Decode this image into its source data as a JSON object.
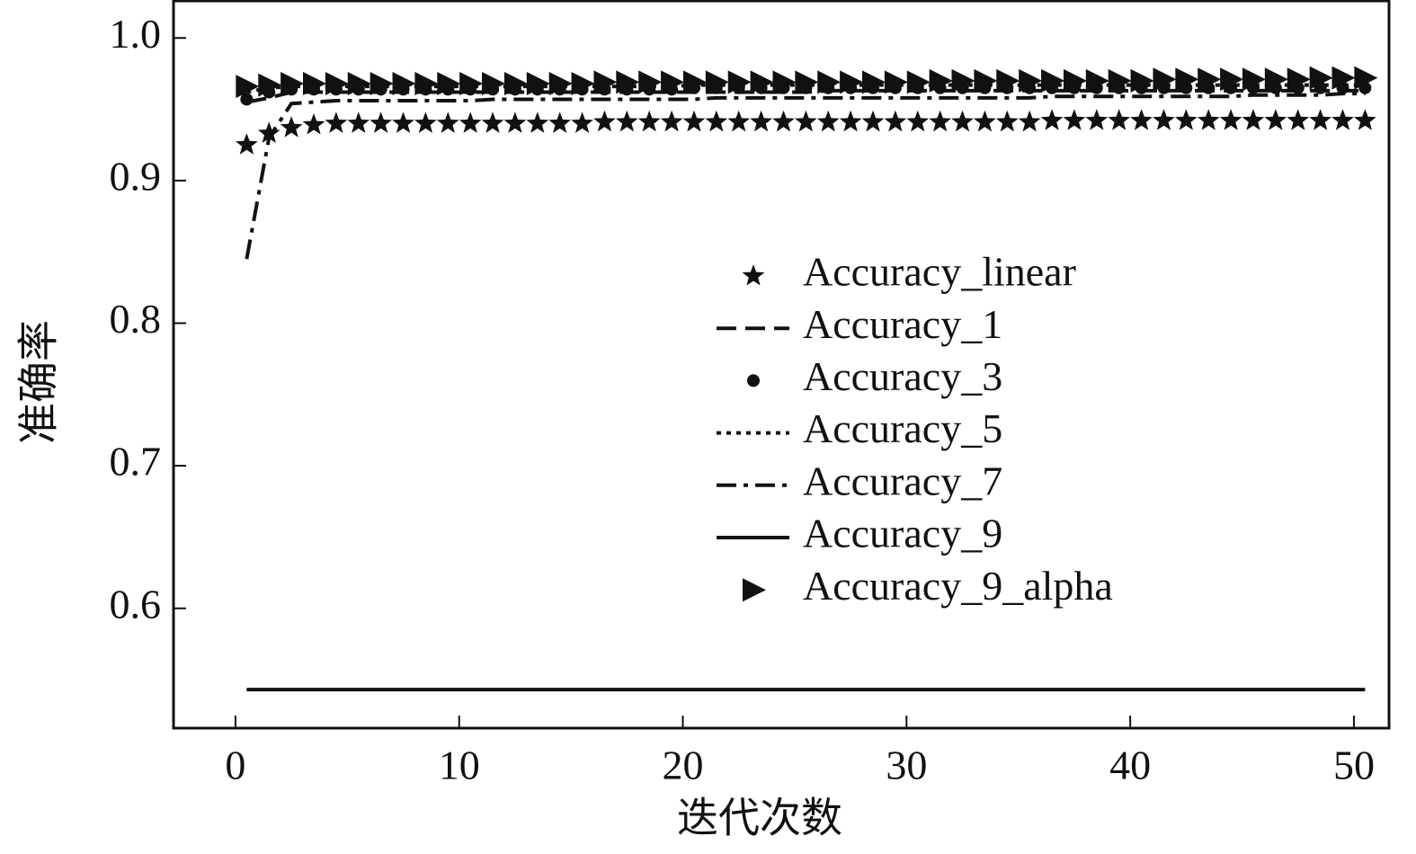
{
  "chart_data": {
    "type": "line",
    "xlabel": "迭代次数",
    "ylabel": "准确率",
    "xlim": [
      -2.77,
      51.57
    ],
    "ylim": [
      0.516,
      1.026
    ],
    "xticks": [
      0,
      10,
      20,
      30,
      40,
      50
    ],
    "yticks": [
      0.6,
      0.7,
      0.8,
      0.9,
      {
        "value": 1,
        "label": "1.0"
      }
    ],
    "x": [
      0.5,
      1.5,
      2.5,
      3.5,
      4.5,
      5.5,
      6.5,
      7.5,
      8.5,
      9.5,
      10.5,
      11.5,
      12.5,
      13.5,
      14.5,
      15.5,
      16.5,
      17.5,
      18.5,
      19.5,
      20.5,
      21.5,
      22.5,
      23.5,
      24.5,
      25.5,
      26.5,
      27.5,
      28.5,
      29.5,
      30.5,
      31.5,
      32.5,
      33.5,
      34.5,
      35.5,
      36.5,
      37.5,
      38.5,
      39.5,
      40.5,
      41.5,
      42.5,
      43.5,
      44.5,
      45.5,
      46.5,
      47.5,
      48.5,
      49.5,
      50.5
    ],
    "series": [
      {
        "name": "Accuracy_linear",
        "color": "#111111",
        "line": "none",
        "marker": "star",
        "values": [
          0.925,
          0.933,
          0.937,
          0.939,
          0.94,
          0.94,
          0.94,
          0.94,
          0.94,
          0.94,
          0.94,
          0.94,
          0.94,
          0.94,
          0.94,
          0.94,
          0.941,
          0.941,
          0.941,
          0.941,
          0.941,
          0.941,
          0.941,
          0.941,
          0.941,
          0.941,
          0.941,
          0.941,
          0.941,
          0.941,
          0.941,
          0.941,
          0.941,
          0.941,
          0.941,
          0.941,
          0.942,
          0.942,
          0.942,
          0.942,
          0.942,
          0.942,
          0.942,
          0.942,
          0.942,
          0.942,
          0.942,
          0.942,
          0.942,
          0.942,
          0.942
        ]
      },
      {
        "name": "Accuracy_1",
        "color": "#111111",
        "line": "dashed",
        "marker": "none",
        "values": [
          0.955,
          0.958,
          0.962,
          0.962,
          0.962,
          0.962,
          0.962,
          0.962,
          0.962,
          0.962,
          0.962,
          0.962,
          0.962,
          0.962,
          0.962,
          0.962,
          0.962,
          0.962,
          0.962,
          0.962,
          0.962,
          0.962,
          0.962,
          0.962,
          0.962,
          0.962,
          0.963,
          0.963,
          0.963,
          0.963,
          0.963,
          0.963,
          0.963,
          0.963,
          0.963,
          0.963,
          0.963,
          0.963,
          0.963,
          0.963,
          0.963,
          0.963,
          0.963,
          0.963,
          0.963,
          0.963,
          0.963,
          0.963,
          0.963,
          0.963,
          0.963
        ]
      },
      {
        "name": "Accuracy_3",
        "color": "#111111",
        "line": "none",
        "marker": "circle",
        "values": [
          0.957,
          0.962,
          0.964,
          0.964,
          0.964,
          0.964,
          0.964,
          0.964,
          0.964,
          0.964,
          0.964,
          0.964,
          0.964,
          0.964,
          0.964,
          0.964,
          0.964,
          0.964,
          0.964,
          0.964,
          0.965,
          0.965,
          0.965,
          0.965,
          0.965,
          0.965,
          0.965,
          0.965,
          0.965,
          0.965,
          0.965,
          0.965,
          0.965,
          0.965,
          0.965,
          0.965,
          0.965,
          0.965,
          0.965,
          0.965,
          0.965,
          0.965,
          0.965,
          0.965,
          0.965,
          0.965,
          0.965,
          0.965,
          0.965,
          0.965,
          0.965
        ]
      },
      {
        "name": "Accuracy_5",
        "color": "#111111",
        "line": "dotted",
        "marker": "none",
        "values": [
          0.962,
          0.965,
          0.966,
          0.966,
          0.966,
          0.966,
          0.966,
          0.966,
          0.966,
          0.966,
          0.966,
          0.966,
          0.966,
          0.966,
          0.966,
          0.966,
          0.966,
          0.966,
          0.966,
          0.966,
          0.967,
          0.967,
          0.967,
          0.967,
          0.967,
          0.967,
          0.967,
          0.967,
          0.967,
          0.967,
          0.967,
          0.967,
          0.967,
          0.967,
          0.967,
          0.967,
          0.967,
          0.967,
          0.967,
          0.967,
          0.967,
          0.967,
          0.967,
          0.967,
          0.967,
          0.967,
          0.967,
          0.967,
          0.967,
          0.967,
          0.967
        ]
      },
      {
        "name": "Accuracy_7",
        "color": "#111111",
        "line": "dashdot",
        "marker": "none",
        "values": [
          0.845,
          0.93,
          0.954,
          0.955,
          0.956,
          0.956,
          0.956,
          0.956,
          0.956,
          0.956,
          0.956,
          0.957,
          0.957,
          0.957,
          0.957,
          0.957,
          0.957,
          0.957,
          0.957,
          0.957,
          0.957,
          0.958,
          0.958,
          0.958,
          0.958,
          0.958,
          0.958,
          0.958,
          0.958,
          0.958,
          0.958,
          0.958,
          0.958,
          0.958,
          0.958,
          0.958,
          0.959,
          0.959,
          0.959,
          0.959,
          0.959,
          0.959,
          0.959,
          0.959,
          0.959,
          0.96,
          0.96,
          0.96,
          0.96,
          0.961,
          0.961
        ]
      },
      {
        "name": "Accuracy_9",
        "color": "#111111",
        "line": "solid",
        "marker": "none",
        "values": [
          0.543,
          0.543,
          0.543,
          0.543,
          0.543,
          0.543,
          0.543,
          0.543,
          0.543,
          0.543,
          0.543,
          0.543,
          0.543,
          0.543,
          0.543,
          0.543,
          0.543,
          0.543,
          0.543,
          0.543,
          0.543,
          0.543,
          0.543,
          0.543,
          0.543,
          0.543,
          0.543,
          0.543,
          0.543,
          0.543,
          0.543,
          0.543,
          0.543,
          0.543,
          0.543,
          0.543,
          0.543,
          0.543,
          0.543,
          0.543,
          0.543,
          0.543,
          0.543,
          0.543,
          0.543,
          0.543,
          0.543,
          0.543,
          0.543,
          0.543,
          0.543
        ]
      },
      {
        "name": "Accuracy_9_alpha",
        "color": "#111111",
        "line": "none",
        "marker": "triangle",
        "values": [
          0.966,
          0.967,
          0.968,
          0.968,
          0.968,
          0.968,
          0.968,
          0.968,
          0.968,
          0.968,
          0.968,
          0.968,
          0.968,
          0.968,
          0.968,
          0.968,
          0.969,
          0.969,
          0.969,
          0.969,
          0.969,
          0.969,
          0.969,
          0.969,
          0.969,
          0.969,
          0.969,
          0.969,
          0.969,
          0.969,
          0.969,
          0.97,
          0.97,
          0.97,
          0.97,
          0.97,
          0.97,
          0.97,
          0.97,
          0.97,
          0.97,
          0.971,
          0.971,
          0.971,
          0.971,
          0.971,
          0.971,
          0.971,
          0.972,
          0.972,
          0.972
        ]
      }
    ]
  }
}
